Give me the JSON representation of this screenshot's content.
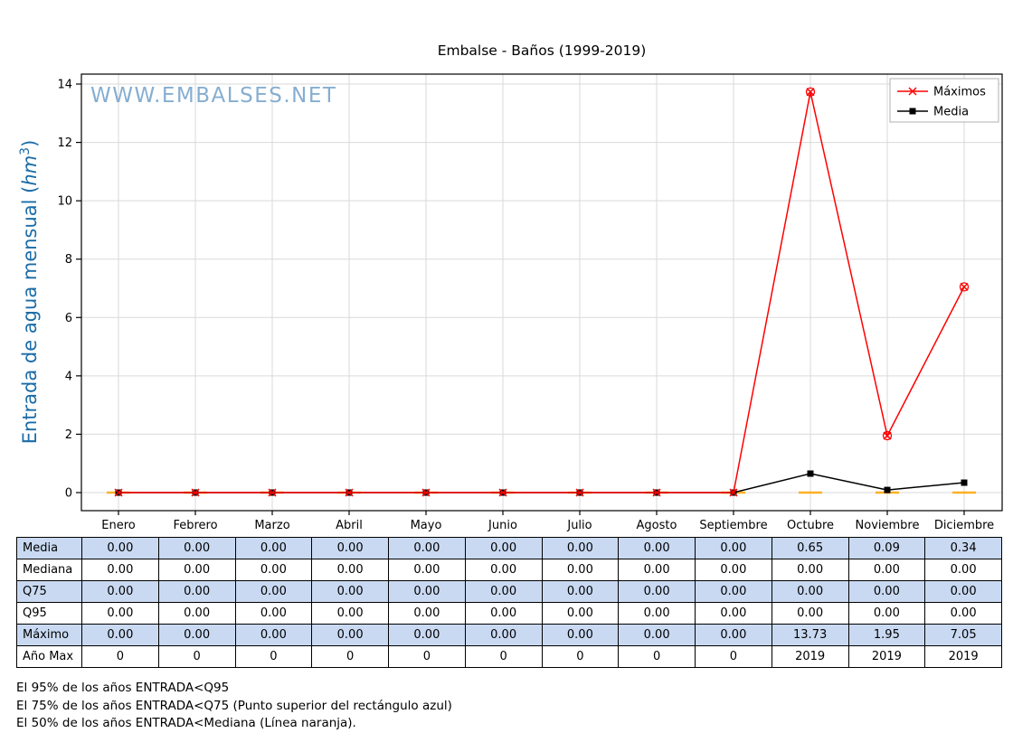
{
  "title": "Embalse - Baños (1999-2019)",
  "watermark": "WWW.EMBALSES.NET",
  "ylabel_parts": {
    "prefix": "Entrada de agua mensual (",
    "italic": "hm",
    "sup": "3",
    "suffix": ")"
  },
  "ylabel_color": "#1b6ca8",
  "chart_data": {
    "type": "line",
    "title": "Embalse - Baños (1999-2019)",
    "categories": [
      "Enero",
      "Febrero",
      "Marzo",
      "Abril",
      "Mayo",
      "Junio",
      "Julio",
      "Agosto",
      "Septiembre",
      "Octubre",
      "Noviembre",
      "Diciembre"
    ],
    "yticks": [
      0,
      2,
      4,
      6,
      8,
      10,
      12,
      14
    ],
    "ylim": [
      -0.6,
      14.3
    ],
    "grid": true,
    "legend_position": "upper right",
    "series": [
      {
        "name": "Mediana",
        "marker": "dash",
        "color": "#ffa500",
        "values": [
          0,
          0,
          0,
          0,
          0,
          0,
          0,
          0,
          0,
          0,
          0,
          0
        ]
      },
      {
        "name": "Media",
        "marker": "square",
        "color": "#000000",
        "values": [
          0,
          0,
          0,
          0,
          0,
          0,
          0,
          0,
          0,
          0.65,
          0.09,
          0.34
        ]
      },
      {
        "name": "Máximos",
        "marker": "x",
        "color": "#ff0000",
        "values": [
          0,
          0,
          0,
          0,
          0,
          0,
          0,
          0,
          0,
          13.73,
          1.95,
          7.05
        ]
      }
    ],
    "legend": [
      {
        "label": "Máximos",
        "color": "#ff0000",
        "marker": "x"
      },
      {
        "label": "Media",
        "color": "#000000",
        "marker": "square"
      }
    ]
  },
  "table": {
    "highlight_color": "#c9d9f2",
    "row_headers": [
      "Media",
      "Mediana",
      "Q75",
      "Q95",
      "Máximo",
      "Año Max"
    ],
    "rows": [
      [
        "0.00",
        "0.00",
        "0.00",
        "0.00",
        "0.00",
        "0.00",
        "0.00",
        "0.00",
        "0.00",
        "0.65",
        "0.09",
        "0.34"
      ],
      [
        "0.00",
        "0.00",
        "0.00",
        "0.00",
        "0.00",
        "0.00",
        "0.00",
        "0.00",
        "0.00",
        "0.00",
        "0.00",
        "0.00"
      ],
      [
        "0.00",
        "0.00",
        "0.00",
        "0.00",
        "0.00",
        "0.00",
        "0.00",
        "0.00",
        "0.00",
        "0.00",
        "0.00",
        "0.00"
      ],
      [
        "0.00",
        "0.00",
        "0.00",
        "0.00",
        "0.00",
        "0.00",
        "0.00",
        "0.00",
        "0.00",
        "0.00",
        "0.00",
        "0.00"
      ],
      [
        "0.00",
        "0.00",
        "0.00",
        "0.00",
        "0.00",
        "0.00",
        "0.00",
        "0.00",
        "0.00",
        "13.73",
        "1.95",
        "7.05"
      ],
      [
        "0",
        "0",
        "0",
        "0",
        "0",
        "0",
        "0",
        "0",
        "0",
        "2019",
        "2019",
        "2019"
      ]
    ]
  },
  "footnotes": [
    "El 95% de los años ENTRADA<Q95",
    "El 75% de los años ENTRADA<Q75 (Punto superior del rectángulo azul)",
    "El 50% de los años ENTRADA<Mediana (Línea naranja)."
  ]
}
